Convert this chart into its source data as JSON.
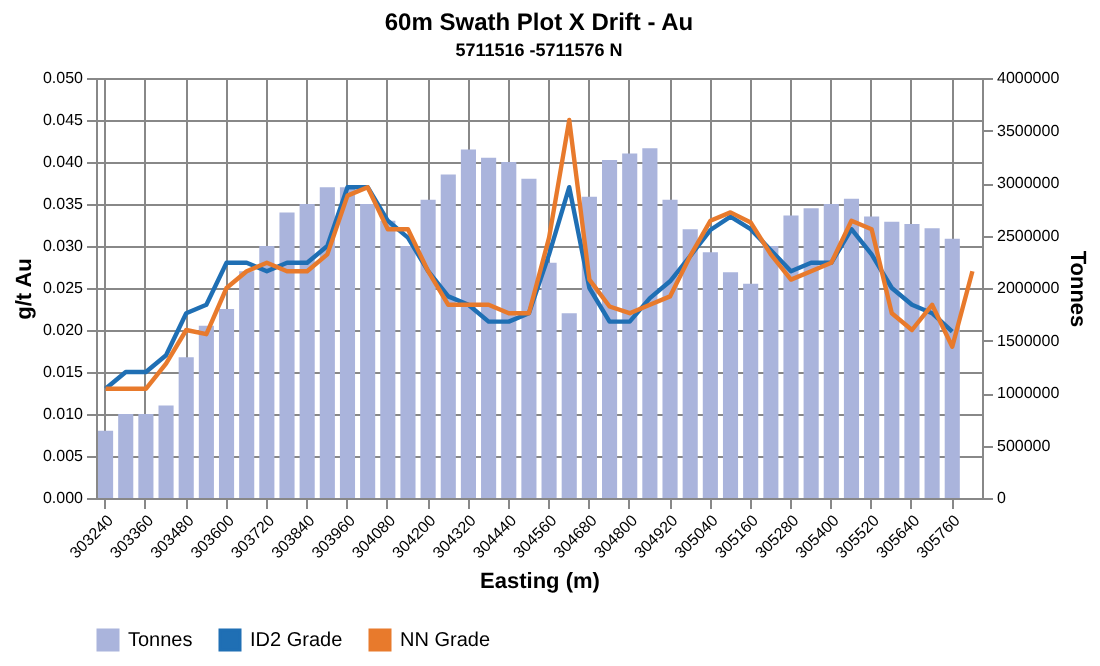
{
  "chart_data": {
    "type": "bar",
    "title": "60m Swath Plot X Drift - Au",
    "subtitle": "5711516 -5711576 N",
    "xlabel": "Easting (m)",
    "ylabel": "g/t Au",
    "y2label": "Tonnes",
    "categories": [
      "303240",
      null,
      "303360",
      null,
      "303480",
      null,
      "303600",
      null,
      "303720",
      null,
      "303840",
      null,
      "303960",
      null,
      "304080",
      null,
      "304200",
      null,
      "304320",
      null,
      "304440",
      null,
      "304560",
      null,
      "304680",
      null,
      "304800",
      null,
      "304920",
      null,
      "305040",
      null,
      "305160",
      null,
      "305280",
      null,
      "305400",
      null,
      "305520",
      null,
      "305640",
      null,
      "305760",
      null
    ],
    "series": [
      {
        "name": "Tonnes",
        "axis": "y2",
        "color": "#aab4dc",
        "values": [
          640000,
          800000,
          800000,
          880000,
          1340000,
          1640000,
          1800000,
          2160000,
          2400000,
          2720000,
          2800000,
          2960000,
          2960000,
          2800000,
          2640000,
          2400000,
          2840000,
          3080000,
          3320000,
          3240000,
          3200000,
          3040000,
          2240000,
          1760000,
          2870000,
          3220000,
          3280000,
          3330000,
          2840000,
          2560000,
          2340000,
          2150000,
          2040000,
          2400000,
          2690000,
          2760000,
          2800000,
          2850000,
          2680000,
          2630000,
          2610000,
          2570000,
          2470000,
          null
        ]
      },
      {
        "name": "ID2 Grade",
        "type": "line",
        "color": "#1f6fb4",
        "values": [
          0.013,
          0.015,
          0.015,
          0.017,
          0.022,
          0.023,
          0.028,
          0.028,
          0.027,
          0.028,
          0.028,
          0.03,
          0.037,
          0.037,
          0.033,
          0.031,
          0.027,
          0.024,
          0.023,
          0.021,
          0.021,
          0.022,
          0.029,
          0.037,
          0.025,
          0.021,
          0.021,
          0.0238,
          0.0258,
          0.0288,
          0.0319,
          0.0335,
          0.032,
          0.0295,
          0.027,
          0.028,
          0.028,
          0.032,
          0.029,
          0.025,
          0.023,
          0.022,
          0.0198,
          null
        ]
      },
      {
        "name": "NN Grade",
        "type": "line",
        "color": "#e87a2c",
        "values": [
          0.013,
          0.013,
          0.013,
          0.016,
          0.02,
          0.0195,
          0.025,
          0.027,
          0.028,
          0.027,
          0.027,
          0.029,
          0.036,
          0.037,
          0.032,
          0.032,
          0.027,
          0.023,
          0.023,
          0.023,
          0.022,
          0.022,
          0.031,
          0.045,
          0.026,
          0.0228,
          0.022,
          0.023,
          0.024,
          0.0288,
          0.033,
          0.034,
          0.0328,
          0.029,
          0.026,
          0.027,
          0.028,
          0.033,
          0.032,
          0.022,
          0.02,
          0.023,
          0.018,
          0.027
        ]
      }
    ],
    "ylim": [
      0,
      0.05
    ],
    "yticks": [
      {
        "value": 0,
        "label": "0.000"
      },
      {
        "value": 0.005,
        "label": "0.005"
      },
      {
        "value": 0.01,
        "label": "0.010"
      },
      {
        "value": 0.015,
        "label": "0.015"
      },
      {
        "value": 0.02,
        "label": "0.020"
      },
      {
        "value": 0.025,
        "label": "0.025"
      },
      {
        "value": 0.03,
        "label": "0.030"
      },
      {
        "value": 0.035,
        "label": "0.035"
      },
      {
        "value": 0.04,
        "label": "0.040"
      },
      {
        "value": 0.045,
        "label": "0.045"
      },
      {
        "value": 0.05,
        "label": "0.050"
      }
    ],
    "y2lim": [
      0,
      4000000
    ],
    "y2ticks": [
      0,
      500000,
      1000000,
      1500000,
      2000000,
      2500000,
      3000000,
      3500000,
      4000000
    ],
    "grid": true,
    "legend": "bottom"
  }
}
